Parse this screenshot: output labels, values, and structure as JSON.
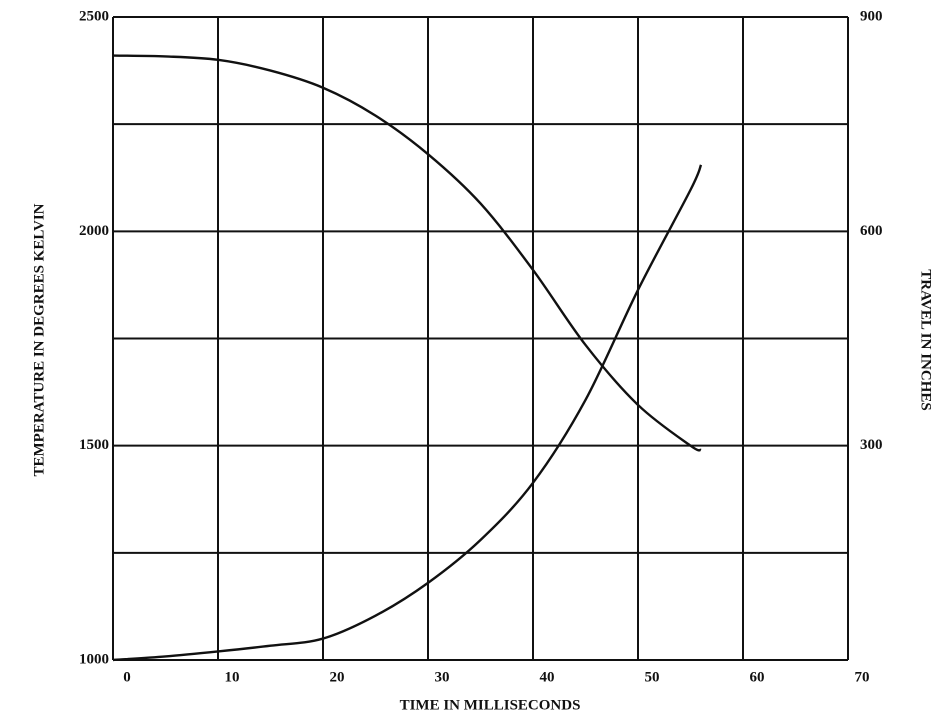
{
  "chart_data": {
    "type": "line",
    "x_label": "TIME IN MILLISECONDS",
    "y_label": "TEMPERATURE IN DEGREES KELVIN",
    "y2_label": "TRAVEL IN INCHES",
    "x": [
      0,
      5,
      10,
      15,
      20,
      25,
      30,
      35,
      40,
      45,
      50,
      55,
      56
    ],
    "series": [
      {
        "name": "Temperature",
        "color": "#111111",
        "values": [
          2410,
          2408,
          2400,
          2375,
          2335,
          2270,
          2180,
          2065,
          1910,
          1735,
          1595,
          1500,
          1490
        ]
      },
      {
        "name": "Travel",
        "color": "#111111",
        "axis": "y2",
        "values": [
          0,
          5,
          12,
          20,
          30,
          62,
          108,
          168,
          248,
          364,
          518,
          658,
          693
        ]
      }
    ],
    "xlim": [
      0,
      70
    ],
    "xticks": [
      0,
      10,
      20,
      30,
      40,
      50,
      60,
      70
    ],
    "ylim": [
      1000,
      2500
    ],
    "yticks": [
      1000,
      1500,
      2000,
      2500
    ],
    "minor_yticks": [
      1250,
      1750,
      2250
    ],
    "y2lim": [
      0,
      900
    ],
    "y2ticks": [
      300,
      600,
      900
    ],
    "grid": true
  }
}
